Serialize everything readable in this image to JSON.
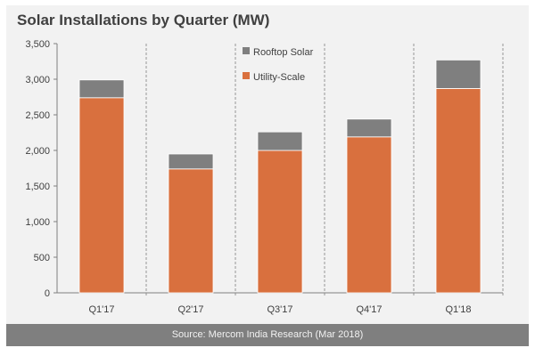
{
  "chart_data": {
    "type": "bar",
    "stacked": true,
    "title": "Solar Installations by Quarter (MW)",
    "categories": [
      "Q1'17",
      "Q2'17",
      "Q3'17",
      "Q4'17",
      "Q1'18"
    ],
    "series": [
      {
        "name": "Utility-Scale",
        "values": [
          2740,
          1740,
          2000,
          2190,
          2870
        ],
        "color": "#d9703e"
      },
      {
        "name": "Rooftop Solar",
        "values": [
          250,
          210,
          260,
          250,
          400
        ],
        "color": "#7f7f7f"
      }
    ],
    "ylim": [
      0,
      3500
    ],
    "yticks": [
      0,
      500,
      1000,
      1500,
      2000,
      2500,
      3000,
      3500
    ],
    "ytick_labels": [
      "0",
      "500",
      "1,000",
      "1,500",
      "2,000",
      "2,500",
      "3,000",
      "3,500"
    ],
    "legend_position": "top-center",
    "grid": "dashed vertical category separators",
    "source": "Source: Mercom India Research (Mar 2018)"
  }
}
